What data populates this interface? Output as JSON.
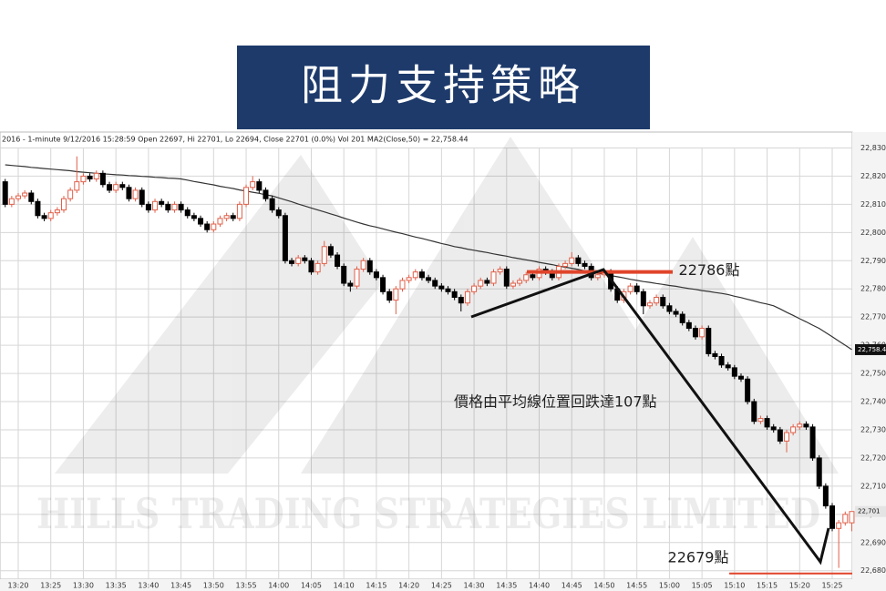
{
  "chart_data": {
    "type": "candlestick",
    "title": "阻力支持策略",
    "header": "2016 - 1-minute 9/12/2016 15:28:59 Open 22697, Hi 22701, Lo 22694, Close 22701 (0.0%) Vol 201 MA2(Close,50) = 22,758.44",
    "watermark": "HILLS TRADING STRATEGIES LIMITED",
    "categories": [
      null,
      null,
      "13:20",
      null,
      null,
      null,
      null,
      "13:25",
      null,
      null,
      null,
      null,
      "13:30",
      null,
      null,
      null,
      null,
      "13:35",
      null,
      null,
      null,
      null,
      "13:40",
      null,
      null,
      null,
      null,
      "13:45",
      null,
      null,
      null,
      null,
      "13:50",
      null,
      null,
      null,
      null,
      "13:55",
      null,
      null,
      null,
      null,
      "14:00",
      null,
      null,
      null,
      null,
      "14:05",
      null,
      null,
      null,
      null,
      "14:10",
      null,
      null,
      null,
      null,
      "14:15",
      null,
      null,
      null,
      null,
      "14:20",
      null,
      null,
      null,
      null,
      "14:25",
      null,
      null,
      null,
      null,
      "14:30",
      null,
      null,
      null,
      null,
      "14:35",
      null,
      null,
      null,
      null,
      "14:40",
      null,
      null,
      null,
      null,
      "14:45",
      null,
      null,
      null,
      null,
      "14:50",
      null,
      null,
      null,
      null,
      "14:55",
      null,
      null,
      null,
      null,
      "15:00",
      null,
      null,
      null,
      null,
      "15:05",
      null,
      null,
      null,
      null,
      "15:10",
      null,
      null,
      null,
      null,
      "15:15",
      null,
      null,
      null,
      null,
      "15:20",
      null,
      null,
      null,
      null,
      "15:25",
      null,
      null,
      null
    ],
    "open": [
      22818,
      22810,
      22812,
      22813,
      22814,
      22811,
      22806,
      22805,
      22807,
      22808,
      22812,
      22815,
      22818,
      22820,
      22819,
      22821,
      22817,
      22815,
      22817,
      22816,
      22812,
      22815,
      22810,
      22808,
      22811,
      22810,
      22808,
      22810,
      22808,
      22806,
      22805,
      22803,
      22801,
      22803,
      22805,
      22806,
      22805,
      22810,
      22816,
      22818,
      22815,
      22812,
      22808,
      22806,
      22790,
      22789,
      22791,
      22790,
      22786,
      22789,
      22795,
      22792,
      22788,
      22782,
      22781,
      22787,
      22790,
      22786,
      22784,
      22779,
      22776,
      22780,
      22783,
      22784,
      22786,
      22784,
      22783,
      22781,
      22780,
      22779,
      22777,
      22775,
      22779,
      22781,
      22783,
      22782,
      22786,
      22787,
      22781,
      22782,
      22783,
      22785,
      22784,
      22787,
      22786,
      22784,
      22788,
      22789,
      22791,
      22789,
      22788,
      22784,
      22785,
      22786,
      22780,
      22776,
      22779,
      22781,
      22779,
      22774,
      22775,
      22777,
      22774,
      22772,
      22771,
      22768,
      22766,
      22763,
      22766,
      22757,
      22756,
      22753,
      22752,
      22749,
      22748,
      22740,
      22733,
      22734,
      22731,
      22730,
      22726,
      22729,
      22731,
      22732,
      22731,
      22720,
      22710,
      22703,
      22695,
      22697,
      22697
    ],
    "high": [
      22819,
      22813,
      22814,
      22815,
      22815,
      22812,
      22807,
      22808,
      22809,
      22813,
      22816,
      22827,
      22821,
      22821,
      22822,
      22822,
      22818,
      22818,
      22818,
      22817,
      22816,
      22816,
      22811,
      22812,
      22812,
      22811,
      22811,
      22811,
      22809,
      22807,
      22806,
      22804,
      22804,
      22806,
      22807,
      22807,
      22811,
      22817,
      22820,
      22819,
      22816,
      22813,
      22809,
      22807,
      22791,
      22792,
      22792,
      22791,
      22790,
      22797,
      22796,
      22793,
      22789,
      22783,
      22788,
      22791,
      22791,
      22787,
      22785,
      22780,
      22781,
      22784,
      22785,
      22787,
      22787,
      22785,
      22784,
      22782,
      22781,
      22780,
      22778,
      22780,
      22782,
      22784,
      22784,
      22787,
      22788,
      22788,
      22783,
      22784,
      22786,
      22786,
      22788,
      22788,
      22787,
      22789,
      22790,
      22793,
      22792,
      22790,
      22789,
      22786,
      22787,
      22787,
      22781,
      22780,
      22782,
      22782,
      22780,
      22776,
      22778,
      22778,
      22775,
      22773,
      22772,
      22769,
      22767,
      22767,
      22767,
      22758,
      22757,
      22754,
      22753,
      22750,
      22749,
      22741,
      22735,
      22735,
      22732,
      22731,
      22730,
      22732,
      22733,
      22733,
      22732,
      22721,
      22711,
      22704,
      22698,
      22701,
      22701
    ],
    "low": [
      22809,
      22809,
      22811,
      22812,
      22810,
      22805,
      22804,
      22804,
      22806,
      22807,
      22811,
      22814,
      22817,
      22818,
      22818,
      22816,
      22814,
      22814,
      22815,
      22811,
      22811,
      22809,
      22807,
      22807,
      22809,
      22807,
      22807,
      22807,
      22805,
      22804,
      22802,
      22800,
      22800,
      22802,
      22804,
      22804,
      22804,
      22809,
      22815,
      22814,
      22811,
      22807,
      22805,
      22789,
      22788,
      22788,
      22789,
      22785,
      22785,
      22788,
      22791,
      22787,
      22781,
      22779,
      22780,
      22786,
      22785,
      22783,
      22778,
      22775,
      22771,
      22779,
      22782,
      22783,
      22783,
      22782,
      22780,
      22779,
      22778,
      22776,
      22772,
      22774,
      22778,
      22780,
      22781,
      22781,
      22785,
      22780,
      22780,
      22781,
      22782,
      22783,
      22783,
      22785,
      22783,
      22783,
      22787,
      22788,
      22788,
      22787,
      22783,
      22783,
      22784,
      22779,
      22775,
      22775,
      22778,
      22778,
      22771,
      22773,
      22774,
      22773,
      22771,
      22770,
      22767,
      22765,
      22762,
      22762,
      22756,
      22755,
      22752,
      22751,
      22748,
      22747,
      22739,
      22732,
      22732,
      22730,
      22729,
      22725,
      22722,
      22728,
      22730,
      22730,
      22719,
      22709,
      22702,
      22694,
      22681,
      22696,
      22694
    ],
    "close": [
      22810,
      22812,
      22813,
      22814,
      22811,
      22806,
      22805,
      22807,
      22808,
      22812,
      22815,
      22818,
      22820,
      22819,
      22821,
      22817,
      22815,
      22817,
      22816,
      22812,
      22815,
      22810,
      22808,
      22811,
      22810,
      22808,
      22810,
      22808,
      22806,
      22805,
      22803,
      22801,
      22803,
      22805,
      22806,
      22805,
      22810,
      22816,
      22818,
      22815,
      22812,
      22808,
      22806,
      22790,
      22789,
      22791,
      22790,
      22786,
      22789,
      22795,
      22792,
      22788,
      22782,
      22781,
      22787,
      22790,
      22786,
      22784,
      22779,
      22776,
      22780,
      22783,
      22784,
      22786,
      22784,
      22783,
      22781,
      22780,
      22779,
      22777,
      22775,
      22779,
      22781,
      22783,
      22782,
      22786,
      22787,
      22781,
      22782,
      22783,
      22785,
      22784,
      22787,
      22786,
      22784,
      22788,
      22789,
      22791,
      22789,
      22788,
      22784,
      22785,
      22786,
      22780,
      22776,
      22779,
      22781,
      22779,
      22774,
      22775,
      22777,
      22774,
      22772,
      22771,
      22768,
      22766,
      22763,
      22766,
      22757,
      22756,
      22753,
      22752,
      22749,
      22748,
      22740,
      22733,
      22734,
      22731,
      22730,
      22726,
      22729,
      22731,
      22732,
      22731,
      22720,
      22710,
      22703,
      22695,
      22697,
      22700,
      22701
    ],
    "ma_values": [
      22824,
      22823.8,
      22823.6,
      22823.4,
      22823.1,
      22822.9,
      22822.7,
      22822.5,
      22822.3,
      22822.1,
      22821.9,
      22821.6,
      22821.4,
      22821.2,
      22821,
      22820.8,
      22820.7,
      22820.5,
      22820.4,
      22820.2,
      22820.1,
      22819.9,
      22819.8,
      22819.6,
      22819.5,
      22819.3,
      22819.2,
      22819,
      22818.6,
      22818.1,
      22817.7,
      22817.3,
      22816.9,
      22816.4,
      22816,
      22815.6,
      22815.1,
      22814.7,
      22814.3,
      22813.9,
      22813.4,
      22813,
      22812.3,
      22811.6,
      22810.9,
      22810.1,
      22809.4,
      22808.7,
      22808,
      22807.3,
      22806.6,
      22805.9,
      22805.1,
      22804.4,
      22803.7,
      22803,
      22802.4,
      22801.9,
      22801.3,
      22800.7,
      22800.1,
      22799.6,
      22799,
      22798.4,
      22797.9,
      22797.3,
      22796.7,
      22796.1,
      22795.6,
      22795,
      22794.6,
      22794.1,
      22793.7,
      22793.3,
      22792.9,
      22792.4,
      22792,
      22791.6,
      22791.1,
      22790.7,
      22790.3,
      22789.9,
      22789.4,
      22789,
      22788.6,
      22788.1,
      22787.7,
      22787.3,
      22786.9,
      22786.4,
      22786,
      22785.6,
      22785.1,
      22784.7,
      22784.3,
      22783.9,
      22783.4,
      22783,
      22782.6,
      22782.3,
      22781.9,
      22781.6,
      22781.2,
      22780.9,
      22780.5,
      22780.1,
      22779.8,
      22779.4,
      22779.1,
      22778.7,
      22778.4,
      22778,
      22777.4,
      22776.9,
      22776.3,
      22775.7,
      22775.1,
      22774.6,
      22774,
      22772.9,
      22771.7,
      22770.6,
      22769.4,
      22768.3,
      22767.1,
      22766,
      22764.5,
      22763,
      22761.5,
      22760,
      22758.44
    ],
    "up_color": "#e0604a",
    "down_color": "#000000",
    "ma_color": "#333333",
    "level_color": "#e0442a",
    "ylim": [
      22677,
      22835
    ],
    "yticks": [
      {
        "value": 22680,
        "label": "22,680"
      },
      {
        "value": 22690,
        "label": "22,690"
      },
      {
        "value": 22700,
        "label": "22,700"
      },
      {
        "value": 22710,
        "label": "22,710"
      },
      {
        "value": 22720,
        "label": "22,720"
      },
      {
        "value": 22730,
        "label": "22,730"
      },
      {
        "value": 22740,
        "label": "22,740"
      },
      {
        "value": 22750,
        "label": "22,750"
      },
      {
        "value": 22760,
        "label": "22,760"
      },
      {
        "value": 22770,
        "label": "22,770"
      },
      {
        "value": 22780,
        "label": "22,780"
      },
      {
        "value": 22790,
        "label": "22,790"
      },
      {
        "value": 22800,
        "label": "22,800"
      },
      {
        "value": 22810,
        "label": "22,810"
      },
      {
        "value": 22820,
        "label": "22,820"
      },
      {
        "value": 22830,
        "label": "22,830"
      }
    ],
    "last_labels": [
      {
        "value": 22758.44,
        "label": "22,758.44"
      },
      {
        "value": 22701,
        "label": "22,701"
      }
    ],
    "levels": [
      {
        "value": 22786,
        "label": "22786點"
      },
      {
        "value": 22679,
        "label": "22679點"
      }
    ],
    "annotation": "價格由平均線位置回跌達107點",
    "grid": true
  }
}
